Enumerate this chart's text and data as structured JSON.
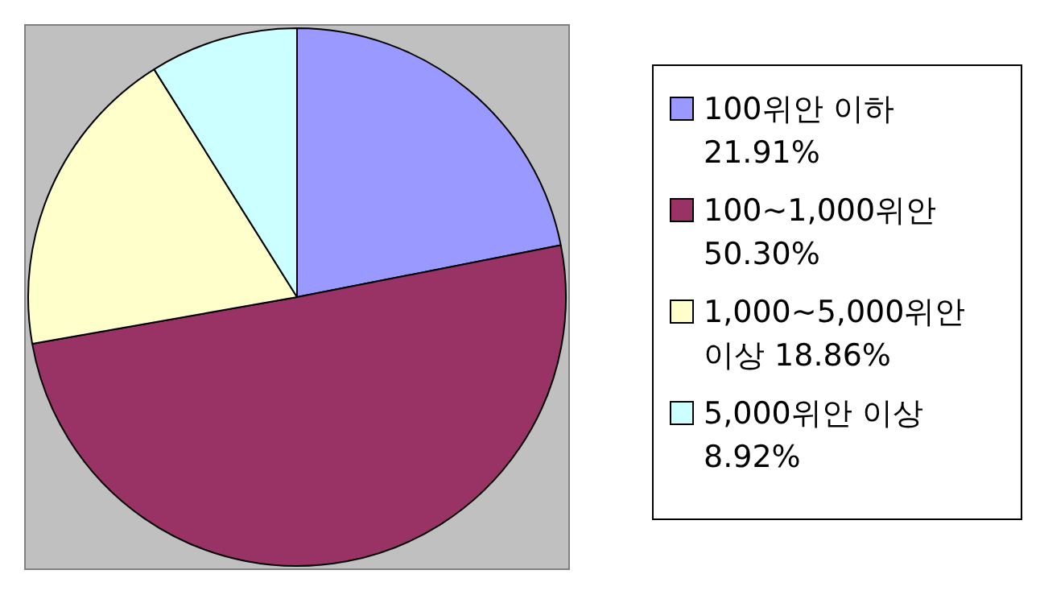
{
  "chart_data": {
    "type": "pie",
    "categories": [
      "100위안 이하",
      "100~1,000위안",
      "1,000~5,000위안 이상",
      "5,000위안 이상"
    ],
    "values": [
      21.91,
      50.3,
      18.86,
      8.92
    ],
    "value_labels": [
      "21.91%",
      "50.30%",
      "18.86%",
      "8.92%"
    ],
    "colors": [
      "#9999ff",
      "#993366",
      "#ffffcc",
      "#ccffff"
    ],
    "legend": "right"
  }
}
